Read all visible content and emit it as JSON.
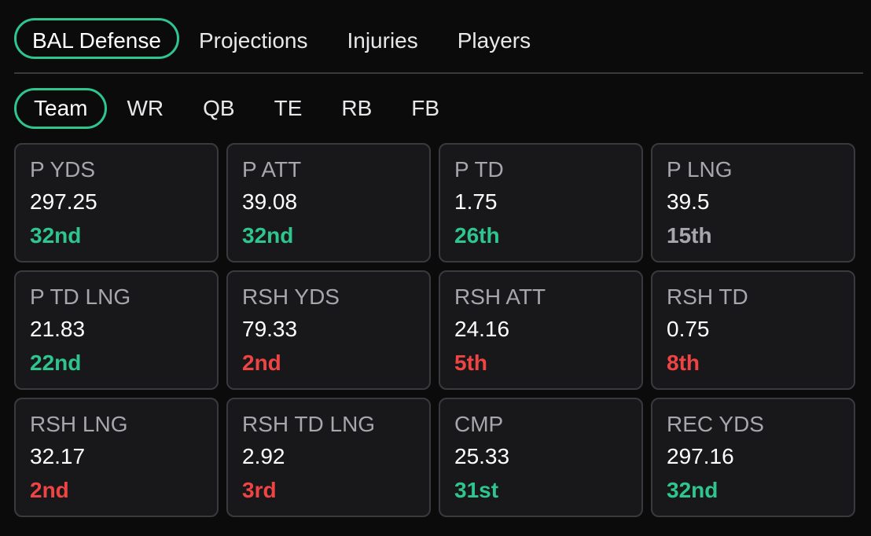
{
  "top_tabs": [
    {
      "label": "BAL Defense",
      "active": true
    },
    {
      "label": "Projections",
      "active": false
    },
    {
      "label": "Injuries",
      "active": false
    },
    {
      "label": "Players",
      "active": false
    }
  ],
  "sub_tabs": [
    {
      "label": "Team",
      "active": true
    },
    {
      "label": "WR",
      "active": false
    },
    {
      "label": "QB",
      "active": false
    },
    {
      "label": "TE",
      "active": false
    },
    {
      "label": "RB",
      "active": false
    },
    {
      "label": "FB",
      "active": false
    }
  ],
  "colors": {
    "accent": "#2fc58f",
    "good": "#2fc58f",
    "bad": "#ef4444",
    "neutral": "#a6a6ab"
  },
  "stats": [
    {
      "label": "P YDS",
      "value": "297.25",
      "rank": "32nd",
      "rank_status": "green"
    },
    {
      "label": "P ATT",
      "value": "39.08",
      "rank": "32nd",
      "rank_status": "green"
    },
    {
      "label": "P TD",
      "value": "1.75",
      "rank": "26th",
      "rank_status": "green"
    },
    {
      "label": "P LNG",
      "value": "39.5",
      "rank": "15th",
      "rank_status": "gray"
    },
    {
      "label": "P TD LNG",
      "value": "21.83",
      "rank": "22nd",
      "rank_status": "green"
    },
    {
      "label": "RSH YDS",
      "value": "79.33",
      "rank": "2nd",
      "rank_status": "red"
    },
    {
      "label": "RSH ATT",
      "value": "24.16",
      "rank": "5th",
      "rank_status": "red"
    },
    {
      "label": "RSH TD",
      "value": "0.75",
      "rank": "8th",
      "rank_status": "red"
    },
    {
      "label": "RSH LNG",
      "value": "32.17",
      "rank": "2nd",
      "rank_status": "red"
    },
    {
      "label": "RSH TD LNG",
      "value": "2.92",
      "rank": "3rd",
      "rank_status": "red"
    },
    {
      "label": "CMP",
      "value": "25.33",
      "rank": "31st",
      "rank_status": "green"
    },
    {
      "label": "REC YDS",
      "value": "297.16",
      "rank": "32nd",
      "rank_status": "green"
    }
  ]
}
